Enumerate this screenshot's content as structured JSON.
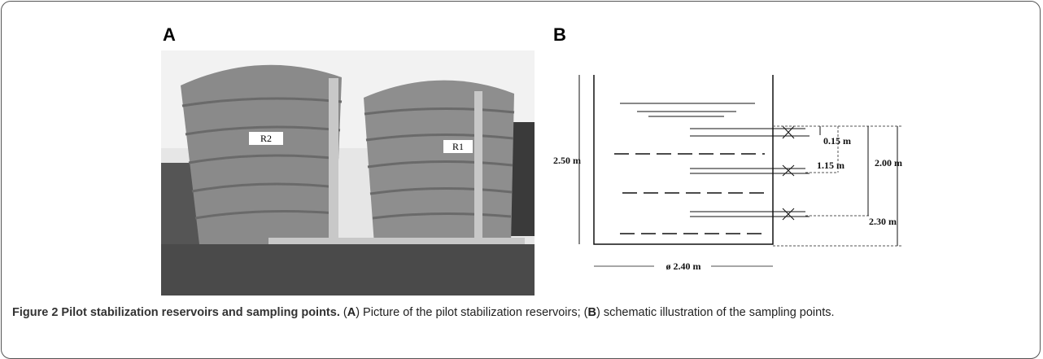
{
  "panels": {
    "a": {
      "label": "A",
      "tank_labels": [
        "R2",
        "R1"
      ]
    },
    "b": {
      "label": "B",
      "dimensions": {
        "height": "2.50 m",
        "top_sample": "0.15 m",
        "middle_sample": "1.15 m",
        "span": "2.00 m",
        "bottom_sample": "2.30 m",
        "diameter": "ø 2.40 m"
      }
    }
  },
  "caption": {
    "title": "Figure 2 Pilot stabilization reservoirs and sampling points.",
    "parts": [
      " (",
      "A",
      ") Picture of the pilot stabilization reservoirs; (",
      "B",
      ") schematic illustration of the sampling points."
    ]
  }
}
